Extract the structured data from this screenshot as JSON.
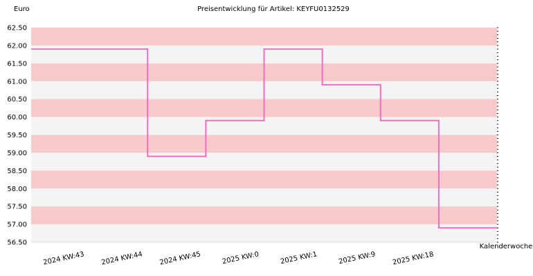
{
  "chart_data": {
    "type": "line",
    "step": true,
    "title": "Preisentwicklung für Artikel: KEYFU0132529",
    "ylabel": "Euro",
    "xlabel": "Kalenderwoche",
    "ylim": [
      56.5,
      62.5
    ],
    "yticks": [
      "62.50",
      "62.00",
      "61.50",
      "61.00",
      "60.50",
      "60.00",
      "59.50",
      "59.00",
      "58.50",
      "58.00",
      "57.50",
      "57.00",
      "56.50"
    ],
    "categories": [
      "2024 KW:43",
      "2024 KW:44",
      "2024 KW:45",
      "2025 KW:0",
      "2025 KW:1",
      "2025 KW:9",
      "2025 KW:18"
    ],
    "series": [
      {
        "values": [
          61.9,
          58.9,
          59.9,
          61.9,
          60.9,
          59.9,
          56.9
        ]
      }
    ],
    "grid": true
  },
  "colors": {
    "band_pink": "#f7caca",
    "band_light": "#f4f4f4",
    "line": "#f06cc0",
    "axis": "#000000"
  }
}
